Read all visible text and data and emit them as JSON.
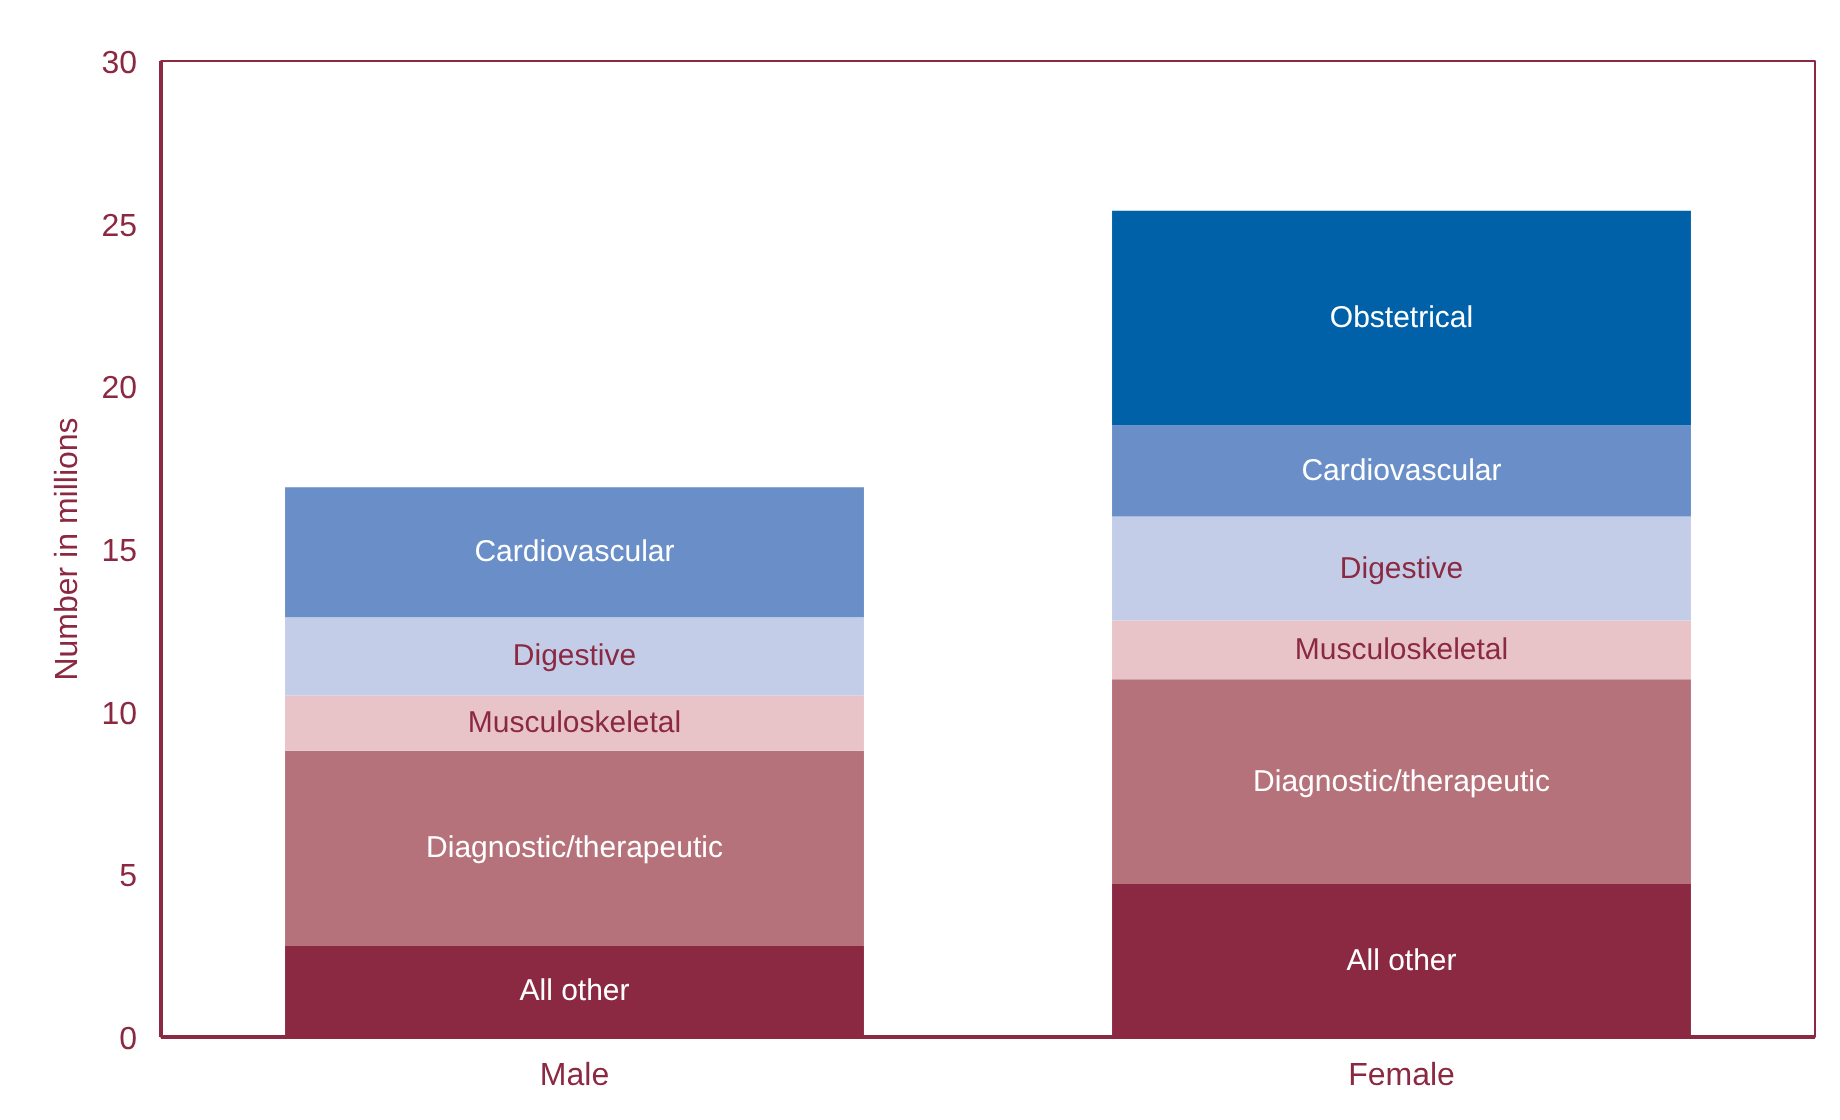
{
  "chart_data": {
    "type": "bar",
    "stacked": true,
    "ylabel": "Number in millions",
    "categories": [
      "Male",
      "Female"
    ],
    "ylim": [
      0,
      30
    ],
    "yticks": [
      0,
      5,
      10,
      15,
      20,
      25,
      30
    ],
    "grid": false,
    "series": [
      {
        "name": "All other",
        "color": "#8b2942",
        "values": [
          2.8,
          4.7
        ]
      },
      {
        "name": "Diagnostic/therapeutic",
        "color": "#b5727a",
        "values": [
          6.0,
          6.3
        ]
      },
      {
        "name": "Musculoskeletal",
        "color": "#e8c4c8",
        "values": [
          1.7,
          1.8
        ]
      },
      {
        "name": "Digestive",
        "color": "#c3cde8",
        "values": [
          2.4,
          3.2
        ]
      },
      {
        "name": "Cardiovascular",
        "color": "#6a8fc8",
        "values": [
          4.0,
          2.8
        ]
      },
      {
        "name": "Obstetrical",
        "color": "#0060a8",
        "values": [
          null,
          6.6
        ]
      }
    ]
  }
}
